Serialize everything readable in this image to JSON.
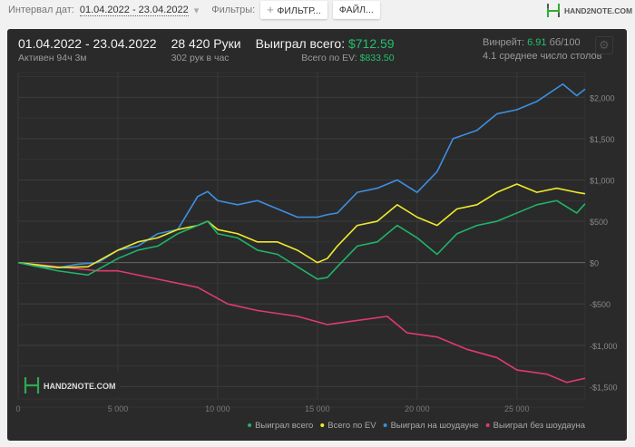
{
  "toolbar": {
    "interval_label": "Интервал дат:",
    "interval_value": "01.04.2022 - 23.04.2022",
    "filters_label": "Фильтры:",
    "filter_button": "ФИЛЬТР...",
    "file_button": "ФАЙЛ...",
    "logo_text": "HAND2NOTE.COM"
  },
  "summary": {
    "date_range": "01.04.2022 - 23.04.2022",
    "active": "Активен 94ч 3м",
    "hands": "28 420 Руки",
    "hands_per_hour": "302 рук в час",
    "won_label": "Выиграл всего:",
    "won_value": "$712.59",
    "ev_label": "Всего по EV:",
    "ev_value": "$833.50",
    "winrate_label": "Винрейт:",
    "winrate_value": "6.91",
    "winrate_unit": "бб/100",
    "tables": "4.1 среднее число столов"
  },
  "watermark": "HAND2NOTE.COM",
  "chart_data": {
    "type": "line",
    "xlim": [
      0,
      28420
    ],
    "ylim": [
      -1650,
      2300
    ],
    "x_ticks": [
      0,
      5000,
      10000,
      15000,
      20000,
      25000
    ],
    "x_tick_labels": [
      "0",
      "5 000",
      "10 000",
      "15 000",
      "20 000",
      "25 000"
    ],
    "y_ticks": [
      -1500,
      -1000,
      -500,
      0,
      500,
      1000,
      1500,
      2000
    ],
    "y_tick_labels": [
      "-$1,500",
      "-$1,000",
      "-$500",
      "$0",
      "$500",
      "$1,000",
      "$1,500",
      "$2,000"
    ],
    "grid": true,
    "legend_position": "bottom-right",
    "series": [
      {
        "name": "Выиграл всего",
        "color": "#1fb46a",
        "x": [
          0,
          1000,
          2000,
          3500,
          5000,
          6000,
          7000,
          8000,
          9000,
          9500,
          10000,
          11000,
          12000,
          13000,
          14000,
          15000,
          15500,
          16000,
          17000,
          18000,
          19000,
          20000,
          21000,
          22000,
          23000,
          24000,
          25000,
          26000,
          27000,
          28000,
          28420
        ],
        "y": [
          0,
          -50,
          -100,
          -150,
          50,
          150,
          200,
          350,
          450,
          500,
          350,
          300,
          150,
          100,
          -50,
          -200,
          -180,
          -50,
          200,
          250,
          450,
          300,
          100,
          350,
          450,
          500,
          600,
          700,
          750,
          600,
          712.59
        ]
      },
      {
        "name": "Всего по EV",
        "color": "#f0ea2a",
        "x": [
          0,
          1000,
          2000,
          3500,
          5000,
          6000,
          7000,
          8000,
          9000,
          9500,
          10000,
          11000,
          12000,
          13000,
          14000,
          15000,
          15500,
          16000,
          17000,
          18000,
          19000,
          20000,
          21000,
          22000,
          23000,
          24000,
          25000,
          26000,
          27000,
          28000,
          28420
        ],
        "y": [
          0,
          -30,
          -60,
          -50,
          150,
          250,
          300,
          400,
          450,
          500,
          400,
          350,
          250,
          250,
          150,
          0,
          50,
          200,
          450,
          500,
          700,
          550,
          450,
          650,
          700,
          850,
          950,
          850,
          900,
          850,
          833.5
        ]
      },
      {
        "name": "Выиграл на шоудауне",
        "color": "#3d8fe0",
        "x": [
          0,
          1000,
          2000,
          3000,
          4000,
          5000,
          6000,
          7000,
          8000,
          9000,
          9500,
          10000,
          11000,
          12000,
          13000,
          14000,
          15000,
          15500,
          16000,
          17000,
          18000,
          19000,
          20000,
          21000,
          21800,
          23000,
          24000,
          25000,
          26000,
          27300,
          28000,
          28420
        ],
        "y": [
          0,
          -50,
          -60,
          -20,
          0,
          150,
          200,
          350,
          400,
          800,
          860,
          750,
          700,
          750,
          650,
          550,
          550,
          580,
          600,
          850,
          900,
          1000,
          850,
          1100,
          1500,
          1600,
          1800,
          1850,
          1950,
          2160,
          2020,
          2100
        ]
      },
      {
        "name": "Выиграл без шоудауна",
        "color": "#e03a6e",
        "x": [
          0,
          2000,
          4000,
          5000,
          7000,
          9000,
          10500,
          12000,
          14000,
          15500,
          17000,
          18500,
          19500,
          21000,
          22500,
          24000,
          25000,
          26500,
          27500,
          28420
        ],
        "y": [
          0,
          -50,
          -100,
          -100,
          -200,
          -300,
          -500,
          -580,
          -650,
          -750,
          -700,
          -650,
          -850,
          -900,
          -1050,
          -1150,
          -1300,
          -1350,
          -1450,
          -1400
        ]
      }
    ]
  }
}
